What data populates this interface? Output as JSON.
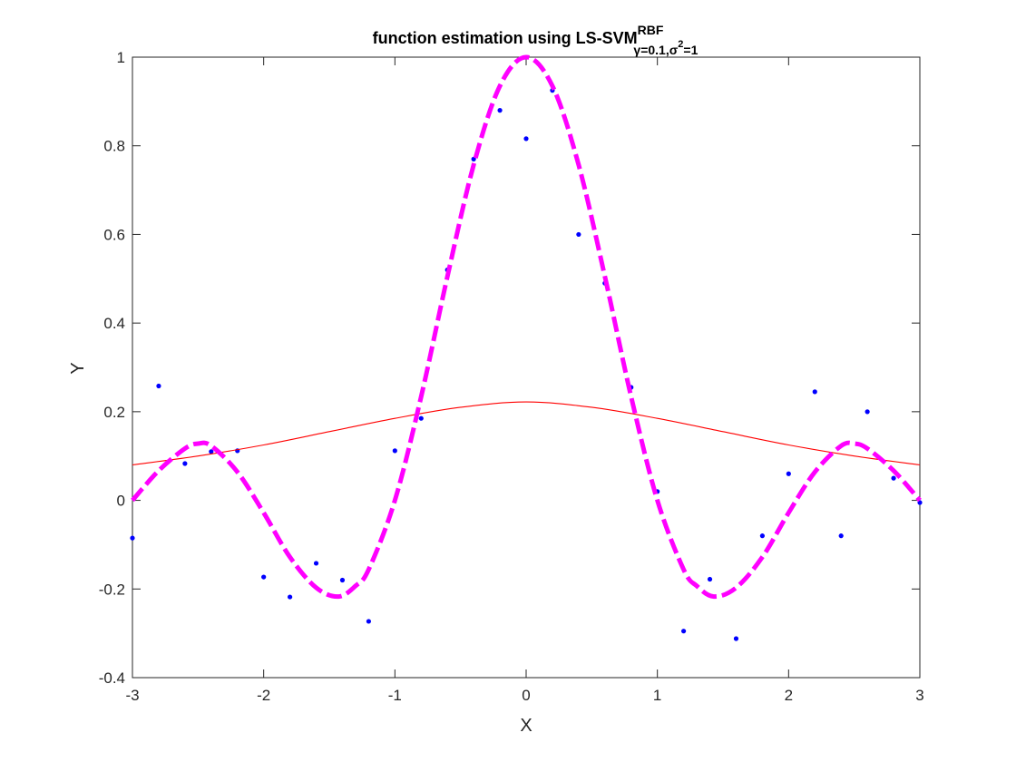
{
  "chart_data": {
    "type": "line",
    "title": {
      "main": "function estimation using  LS-SVM",
      "sup": "RBF",
      "sub_gamma_symbol": "γ",
      "sub_gamma_value": "=0.1,",
      "sub_sigma_symbol": "σ",
      "sub_sigma_exp": "2",
      "sub_sigma_value": "=1"
    },
    "xlabel": "X",
    "ylabel": "Y",
    "xlim": [
      -3,
      3
    ],
    "ylim": [
      -0.4,
      1
    ],
    "xticks": [
      -3,
      -2,
      -1,
      0,
      1,
      2,
      3
    ],
    "yticks": [
      -0.4,
      -0.2,
      0,
      0.2,
      0.4,
      0.6,
      0.8,
      1
    ],
    "grid": false,
    "legend": "none",
    "series": [
      {
        "style": "dots",
        "color": "#0000ff",
        "x": [
          -3.0,
          -2.8,
          -2.6,
          -2.4,
          -2.2,
          -2.0,
          -1.8,
          -1.6,
          -1.4,
          -1.2,
          -1.0,
          -0.8,
          -0.6,
          -0.4,
          -0.2,
          0.0,
          0.2,
          0.4,
          0.6,
          0.8,
          1.0,
          1.2,
          1.4,
          1.6,
          1.8,
          2.0,
          2.2,
          2.4,
          2.6,
          2.8,
          3.0
        ],
        "y": [
          -0.085,
          0.258,
          0.083,
          0.11,
          0.112,
          -0.173,
          -0.218,
          -0.142,
          -0.18,
          -0.273,
          0.112,
          0.185,
          0.52,
          0.77,
          0.88,
          0.816,
          0.925,
          0.6,
          0.49,
          0.255,
          0.02,
          -0.295,
          -0.178,
          -0.312,
          -0.08,
          0.06,
          0.245,
          -0.08,
          0.2,
          0.05,
          -0.005
        ]
      },
      {
        "style": "thin-line",
        "color": "#ff0000",
        "x": [
          -3.0,
          -2.5,
          -2.0,
          -1.5,
          -1.0,
          -0.5,
          0.0,
          0.5,
          1.0,
          1.5,
          2.0,
          2.5,
          3.0
        ],
        "y": [
          0.08,
          0.1,
          0.125,
          0.155,
          0.185,
          0.21,
          0.222,
          0.21,
          0.185,
          0.155,
          0.125,
          0.1,
          0.08
        ]
      },
      {
        "style": "thick-dashed",
        "color": "#ff00ff",
        "x": [
          -3.0,
          -2.8,
          -2.6,
          -2.5,
          -2.4,
          -2.2,
          -2.0,
          -1.8,
          -1.6,
          -1.43,
          -1.3,
          -1.2,
          -1.0,
          -0.8,
          -0.6,
          -0.4,
          -0.2,
          0.0,
          0.2,
          0.4,
          0.6,
          0.8,
          1.0,
          1.2,
          1.3,
          1.43,
          1.6,
          1.8,
          2.0,
          2.2,
          2.4,
          2.5,
          2.6,
          2.8,
          3.0
        ],
        "y": [
          0.0,
          0.067,
          0.117,
          0.128,
          0.123,
          0.064,
          -0.028,
          -0.128,
          -0.197,
          -0.217,
          -0.193,
          -0.156,
          0.0,
          0.234,
          0.505,
          0.757,
          0.935,
          1.0,
          0.935,
          0.757,
          0.505,
          0.234,
          0.0,
          -0.156,
          -0.193,
          -0.217,
          -0.197,
          -0.128,
          -0.028,
          0.064,
          0.123,
          0.128,
          0.117,
          0.067,
          0.0
        ]
      }
    ]
  }
}
